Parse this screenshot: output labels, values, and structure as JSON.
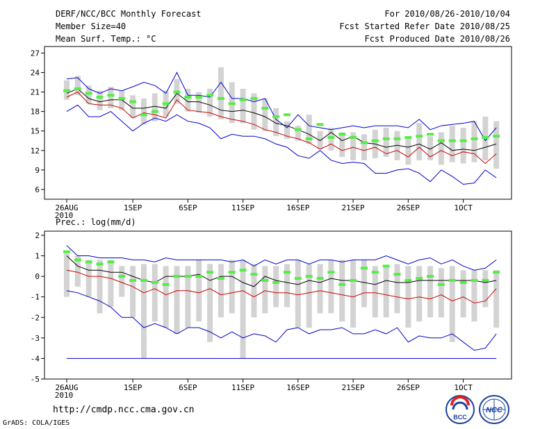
{
  "header": {
    "title": "DERF/NCC/BCC Monthly Forecast",
    "member_size": "Member Size=40",
    "variable": "Mean Surf. Temp.: °C",
    "period": "For 2010/08/26-2010/10/04",
    "started": "Fcst Started Refer Date 2010/08/25",
    "produced": "Fcst Produced Date 2010/08/26"
  },
  "footer": {
    "url": "http://cmdp.ncc.cma.gov.cn",
    "credit": "GrADS: COLA/IGES",
    "logo_bcc": "BCC",
    "logo_ncc": "NCC"
  },
  "colors": {
    "box": "#d3d3d3",
    "ens_mean": "#000000",
    "control": "#55ee44",
    "upper": "#0000cc",
    "lower": "#cc0000",
    "axis": "#000000"
  },
  "chart_data": [
    {
      "id": "temp",
      "type": "line",
      "title": "Mean Surf. Temp.: °C",
      "ylim": [
        4.5,
        28
      ],
      "yticks": [
        6,
        9,
        12,
        15,
        18,
        21,
        24,
        27
      ],
      "x_ticks": [
        {
          "day": 0,
          "label": "26AUG",
          "sub": "2010"
        },
        {
          "day": 6,
          "label": "1SEP",
          "sub": ""
        },
        {
          "day": 11,
          "label": "6SEP",
          "sub": ""
        },
        {
          "day": 16,
          "label": "11SEP",
          "sub": ""
        },
        {
          "day": 21,
          "label": "16SEP",
          "sub": ""
        },
        {
          "day": 26,
          "label": "21SEP",
          "sub": ""
        },
        {
          "day": 31,
          "label": "26SEP",
          "sub": ""
        },
        {
          "day": 36,
          "label": "1OCT",
          "sub": ""
        }
      ],
      "days": 40,
      "box_low": [
        19.8,
        20.5,
        19.2,
        18.2,
        18.5,
        18.2,
        17.0,
        16.0,
        16.5,
        17.2,
        19.2,
        18.0,
        17.8,
        17.2,
        16.8,
        16.2,
        16.2,
        15.2,
        15.0,
        14.2,
        13.8,
        13.5,
        13.0,
        12.2,
        12.0,
        11.0,
        10.5,
        10.5,
        10.8,
        11.0,
        10.5,
        9.8,
        10.5,
        10.5,
        9.8,
        10.2,
        10.0,
        10.2,
        10.5,
        9.2
      ],
      "box_high": [
        22.8,
        23.5,
        22.0,
        21.2,
        21.8,
        21.2,
        20.5,
        20.0,
        20.8,
        21.2,
        23.0,
        21.5,
        21.0,
        21.5,
        24.8,
        22.5,
        21.5,
        20.8,
        20.0,
        18.5,
        16.5,
        15.8,
        17.5,
        15.0,
        15.5,
        14.8,
        14.8,
        14.5,
        15.2,
        15.5,
        15.0,
        14.2,
        16.2,
        14.2,
        14.8,
        15.8,
        15.5,
        16.5,
        17.2,
        16.5
      ],
      "ens_mean": [
        20.8,
        21.5,
        20.0,
        19.5,
        19.8,
        19.8,
        18.5,
        18.5,
        18.8,
        18.5,
        20.8,
        19.5,
        19.5,
        19.0,
        18.2,
        18.0,
        18.2,
        17.8,
        17.2,
        16.2,
        15.8,
        15.2,
        14.5,
        13.5,
        14.8,
        13.5,
        14.2,
        13.2,
        13.0,
        12.5,
        12.8,
        12.5,
        13.0,
        12.2,
        13.2,
        12.0,
        12.2,
        12.0,
        12.5,
        13.0
      ],
      "control": [
        21.2,
        21.5,
        20.8,
        20.2,
        20.5,
        20.0,
        19.5,
        17.5,
        18.0,
        19.2,
        21.0,
        20.2,
        20.2,
        20.5,
        20.0,
        19.2,
        19.8,
        20.0,
        18.5,
        17.2,
        17.5,
        15.2,
        13.8,
        16.0,
        14.0,
        14.5,
        14.0,
        13.2,
        13.5,
        13.8,
        13.8,
        14.0,
        14.2,
        14.5,
        13.5,
        13.5,
        13.5,
        13.8,
        14.0,
        14.2
      ],
      "upper": [
        23.0,
        23.2,
        21.5,
        20.8,
        21.5,
        21.2,
        21.8,
        22.5,
        22.0,
        20.8,
        24.0,
        20.5,
        20.5,
        20.2,
        22.5,
        20.0,
        20.0,
        19.5,
        20.0,
        16.8,
        15.5,
        17.5,
        15.8,
        15.5,
        15.2,
        15.5,
        15.8,
        15.5,
        15.8,
        15.8,
        15.8,
        15.5,
        16.8,
        15.2,
        15.8,
        16.0,
        16.2,
        16.5,
        13.5,
        15.5
      ],
      "lower": [
        20.2,
        21.0,
        19.2,
        19.0,
        19.0,
        18.5,
        17.0,
        17.8,
        17.5,
        17.0,
        19.8,
        18.2,
        18.0,
        17.8,
        17.2,
        16.8,
        16.5,
        16.0,
        15.2,
        14.8,
        14.2,
        13.8,
        13.2,
        12.2,
        13.0,
        12.0,
        12.5,
        12.0,
        12.5,
        11.5,
        12.0,
        11.0,
        12.5,
        11.0,
        12.0,
        11.2,
        11.8,
        11.5,
        10.0,
        11.5
      ],
      "lowest": [
        18.0,
        19.0,
        17.2,
        17.2,
        18.0,
        16.5,
        15.0,
        16.2,
        17.0,
        16.5,
        17.5,
        16.5,
        16.2,
        15.5,
        13.8,
        14.5,
        14.2,
        14.2,
        13.8,
        13.0,
        12.5,
        11.2,
        10.8,
        12.0,
        10.5,
        10.0,
        10.2,
        10.0,
        8.5,
        8.5,
        9.0,
        9.2,
        8.5,
        7.2,
        9.0,
        8.0,
        6.8,
        7.0,
        9.0,
        7.8
      ]
    },
    {
      "id": "prec",
      "type": "line",
      "title": "Prec.: log(mm/d)",
      "ylim": [
        -5,
        2.2
      ],
      "yticks": [
        -5,
        -4,
        -3,
        -2,
        -1,
        0,
        1,
        2
      ],
      "x_ticks": [
        {
          "day": 0,
          "label": "26AUG",
          "sub": "2010"
        },
        {
          "day": 6,
          "label": "1SEP",
          "sub": ""
        },
        {
          "day": 11,
          "label": "6SEP",
          "sub": ""
        },
        {
          "day": 16,
          "label": "11SEP",
          "sub": ""
        },
        {
          "day": 21,
          "label": "16SEP",
          "sub": ""
        },
        {
          "day": 26,
          "label": "21SEP",
          "sub": ""
        },
        {
          "day": 31,
          "label": "26SEP",
          "sub": ""
        },
        {
          "day": 36,
          "label": "1OCT",
          "sub": ""
        }
      ],
      "days": 40,
      "box_low": [
        -1.0,
        -0.5,
        -1.0,
        -1.8,
        -1.5,
        -1.0,
        -2.0,
        -4.0,
        -2.2,
        -2.5,
        -2.8,
        -2.5,
        -2.2,
        -3.2,
        -2.0,
        -1.8,
        -4.0,
        -2.0,
        -1.8,
        -1.5,
        -1.5,
        -2.5,
        -2.5,
        -1.8,
        -1.8,
        -2.2,
        -2.5,
        -1.5,
        -2.0,
        -2.0,
        -1.8,
        -2.5,
        -2.2,
        -2.0,
        -2.0,
        -3.2,
        -2.0,
        -2.2,
        -1.5,
        -2.5
      ],
      "box_high": [
        1.2,
        1.0,
        0.8,
        0.8,
        0.8,
        0.5,
        0.5,
        0.6,
        0.6,
        0.5,
        0.5,
        0.5,
        0.8,
        0.6,
        0.6,
        0.8,
        0.8,
        0.6,
        0.5,
        0.5,
        0.6,
        0.8,
        0.6,
        0.6,
        0.8,
        0.8,
        0.8,
        0.8,
        0.5,
        0.5,
        0.6,
        0.5,
        0.5,
        0.5,
        0.4,
        0.5,
        0.3,
        0.3,
        0.3,
        0.3
      ],
      "ens_mean": [
        1.0,
        0.5,
        0.3,
        0.3,
        0.2,
        0.2,
        0.0,
        -0.2,
        -0.3,
        0.0,
        0.0,
        0.0,
        0.1,
        -0.2,
        0.0,
        0.0,
        -0.3,
        -0.5,
        0.0,
        -0.2,
        -0.3,
        -0.4,
        -0.2,
        -0.3,
        -0.1,
        -0.2,
        -0.2,
        -0.3,
        -0.4,
        -0.2,
        -0.3,
        -0.3,
        -0.2,
        -0.2,
        -0.2,
        -0.2,
        -0.2,
        -0.2,
        -0.3,
        -0.2
      ],
      "control": [
        1.2,
        0.8,
        0.7,
        0.6,
        0.7,
        0.0,
        -0.2,
        -0.2,
        -0.3,
        -0.4,
        0.0,
        0.0,
        0.0,
        0.2,
        -0.1,
        0.2,
        0.3,
        0.1,
        -0.2,
        -0.3,
        0.2,
        -0.1,
        0.0,
        -0.1,
        0.2,
        -0.4,
        -0.2,
        0.4,
        0.2,
        0.5,
        0.1,
        -0.2,
        -0.1,
        0.0,
        -0.4,
        -0.2,
        -0.3,
        -0.2,
        -0.2,
        0.2
      ],
      "upper": [
        1.5,
        1.0,
        1.0,
        0.9,
        0.9,
        0.9,
        0.8,
        0.8,
        0.7,
        0.9,
        0.8,
        0.8,
        0.8,
        0.8,
        0.8,
        0.7,
        0.8,
        0.5,
        0.8,
        0.6,
        0.8,
        0.8,
        0.6,
        0.8,
        0.8,
        0.7,
        0.8,
        0.8,
        0.8,
        1.0,
        0.8,
        0.6,
        0.8,
        0.9,
        0.6,
        0.8,
        0.5,
        0.3,
        0.4,
        0.8
      ],
      "lower": [
        0.3,
        0.2,
        0.0,
        0.0,
        -0.1,
        -0.3,
        -0.5,
        -0.8,
        -0.6,
        -0.9,
        -0.7,
        -0.7,
        -0.8,
        -0.6,
        -0.9,
        -0.8,
        -0.7,
        -1.0,
        -0.7,
        -0.8,
        -0.8,
        -0.9,
        -0.8,
        -0.7,
        -0.8,
        -0.9,
        -1.0,
        -0.8,
        -0.8,
        -0.9,
        -1.0,
        -1.1,
        -1.0,
        -1.1,
        -0.9,
        -1.2,
        -1.0,
        -1.3,
        -1.2,
        -0.6
      ],
      "lowest": [
        -0.7,
        -0.8,
        -1.0,
        -1.2,
        -1.5,
        -2.0,
        -2.0,
        -2.5,
        -2.3,
        -2.5,
        -2.8,
        -2.5,
        -2.5,
        -2.7,
        -3.0,
        -2.7,
        -3.0,
        -2.8,
        -2.9,
        -3.2,
        -2.6,
        -2.5,
        -2.8,
        -2.6,
        -2.6,
        -2.5,
        -2.8,
        -2.8,
        -2.6,
        -2.8,
        -2.5,
        -3.2,
        -2.9,
        -3.0,
        -3.0,
        -2.8,
        -3.2,
        -3.6,
        -3.5,
        -2.8
      ],
      "floor": -4
    }
  ]
}
